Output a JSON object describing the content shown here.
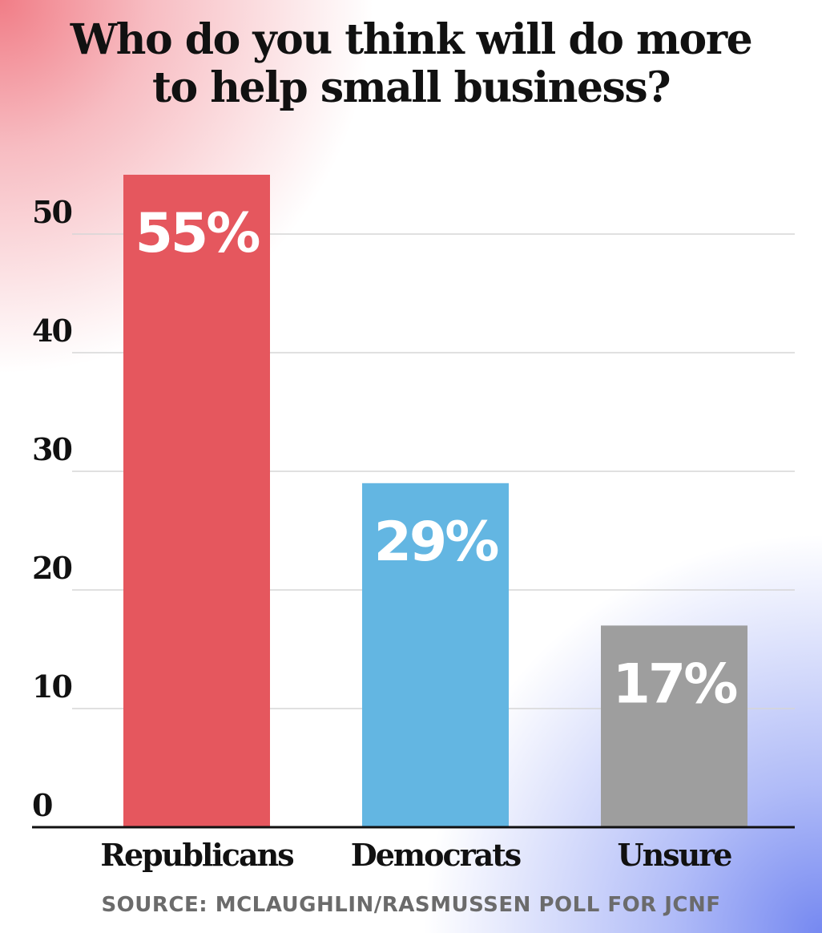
{
  "title": "Who do you think will do more\nto help small business?",
  "source": "SOURCE: MCLAUGHLIN/RASMUSSEN POLL FOR JCNF",
  "colors": {
    "republicans": "#e5575e",
    "democrats": "#63b6e2",
    "unsure": "#9e9e9e",
    "gridline": "#d6d6d6",
    "axis": "#111111",
    "background_top_left": "#f07680",
    "background_bottom_right": "#6e82f0"
  },
  "chart_data": {
    "type": "bar",
    "title": "Who do you think will do more to help small business?",
    "categories": [
      "Republicans",
      "Democrats",
      "Unsure"
    ],
    "values": [
      55,
      29,
      17
    ],
    "data_labels": [
      "55%",
      "29%",
      "17%"
    ],
    "bar_colors": [
      "#e5575e",
      "#63b6e2",
      "#9e9e9e"
    ],
    "ylim": [
      0,
      55
    ],
    "yticks": [
      0,
      10,
      20,
      30,
      40,
      50
    ],
    "ytick_labels": [
      "0",
      "10",
      "20",
      "30",
      "40",
      "50"
    ],
    "grid": true,
    "legend": "none",
    "xlabel": "",
    "ylabel": ""
  }
}
